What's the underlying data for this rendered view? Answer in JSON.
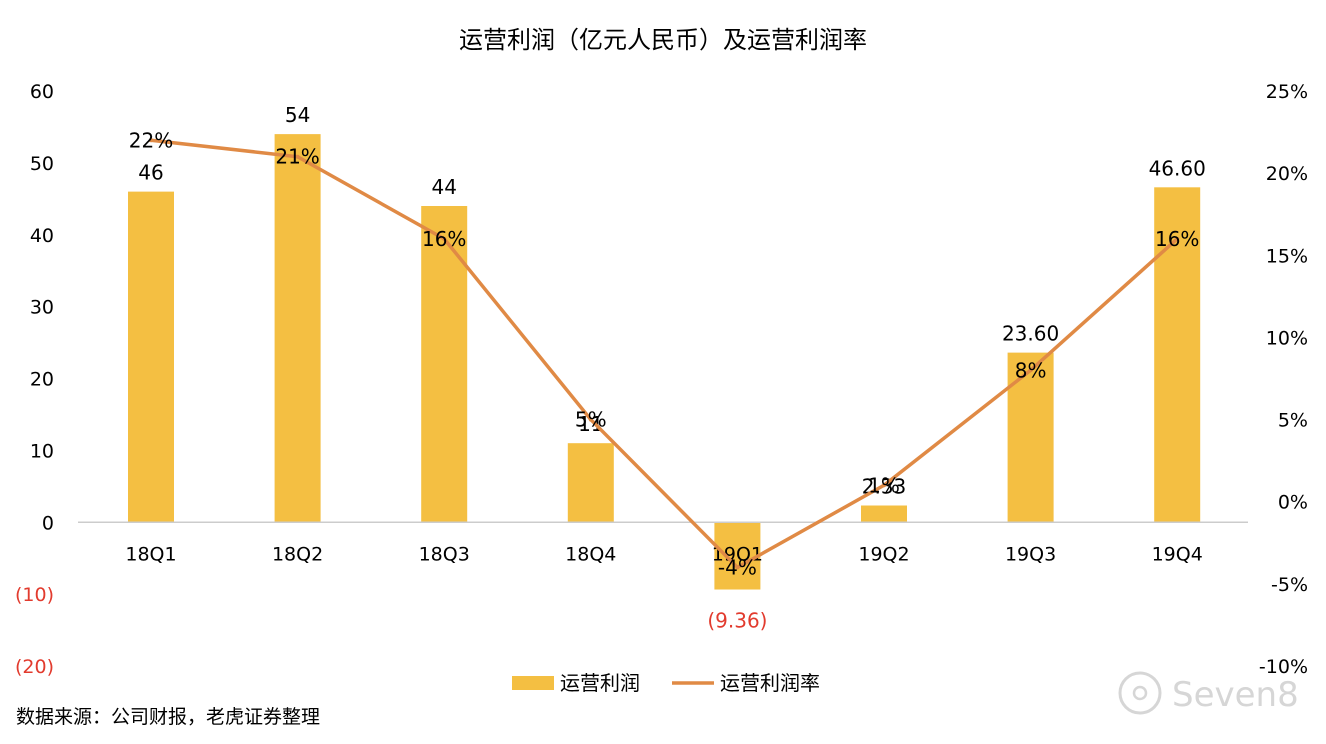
{
  "chart_data": {
    "type": "bar",
    "title": "运营利润（亿元人民币）及运营利润率",
    "categories": [
      "18Q1",
      "18Q2",
      "18Q3",
      "18Q4",
      "19Q1",
      "19Q2",
      "19Q3",
      "19Q4"
    ],
    "series": [
      {
        "name": "运营利润",
        "type": "bar",
        "axis": "left",
        "color": "#F4BF42",
        "values": [
          46,
          54,
          44,
          11,
          -9.36,
          2.33,
          23.6,
          46.6
        ],
        "labels": [
          "46",
          "54",
          "44",
          "11",
          "(9.36)",
          "2.33",
          "23.60",
          "46.60"
        ]
      },
      {
        "name": "运营利润率",
        "type": "line",
        "axis": "right",
        "color": "#E08A45",
        "values": [
          22,
          21,
          16,
          5,
          -4,
          1,
          8,
          16
        ],
        "labels": [
          "22%",
          "21%",
          "16%",
          "5%",
          "-4%",
          "1%",
          "8%",
          "16%"
        ]
      }
    ],
    "y_left": {
      "min": -20,
      "max": 60,
      "ticks": [
        60,
        50,
        40,
        30,
        20,
        10,
        0,
        -10,
        -20
      ],
      "tick_labels": [
        "60",
        "50",
        "40",
        "30",
        "20",
        "10",
        "0",
        "(10)",
        "(20)"
      ]
    },
    "y_right": {
      "min": -10,
      "max": 25,
      "ticks": [
        25,
        20,
        15,
        10,
        5,
        0,
        -5,
        -10
      ],
      "tick_labels": [
        "25%",
        "20%",
        "15%",
        "10%",
        "5%",
        "0%",
        "-5%",
        "-10%"
      ]
    },
    "negative_label_color": "#E23B2E",
    "legend_position": "bottom",
    "grid": false
  },
  "source_note": "数据来源：公司财报，老虎证券整理",
  "watermark": "Seven8"
}
